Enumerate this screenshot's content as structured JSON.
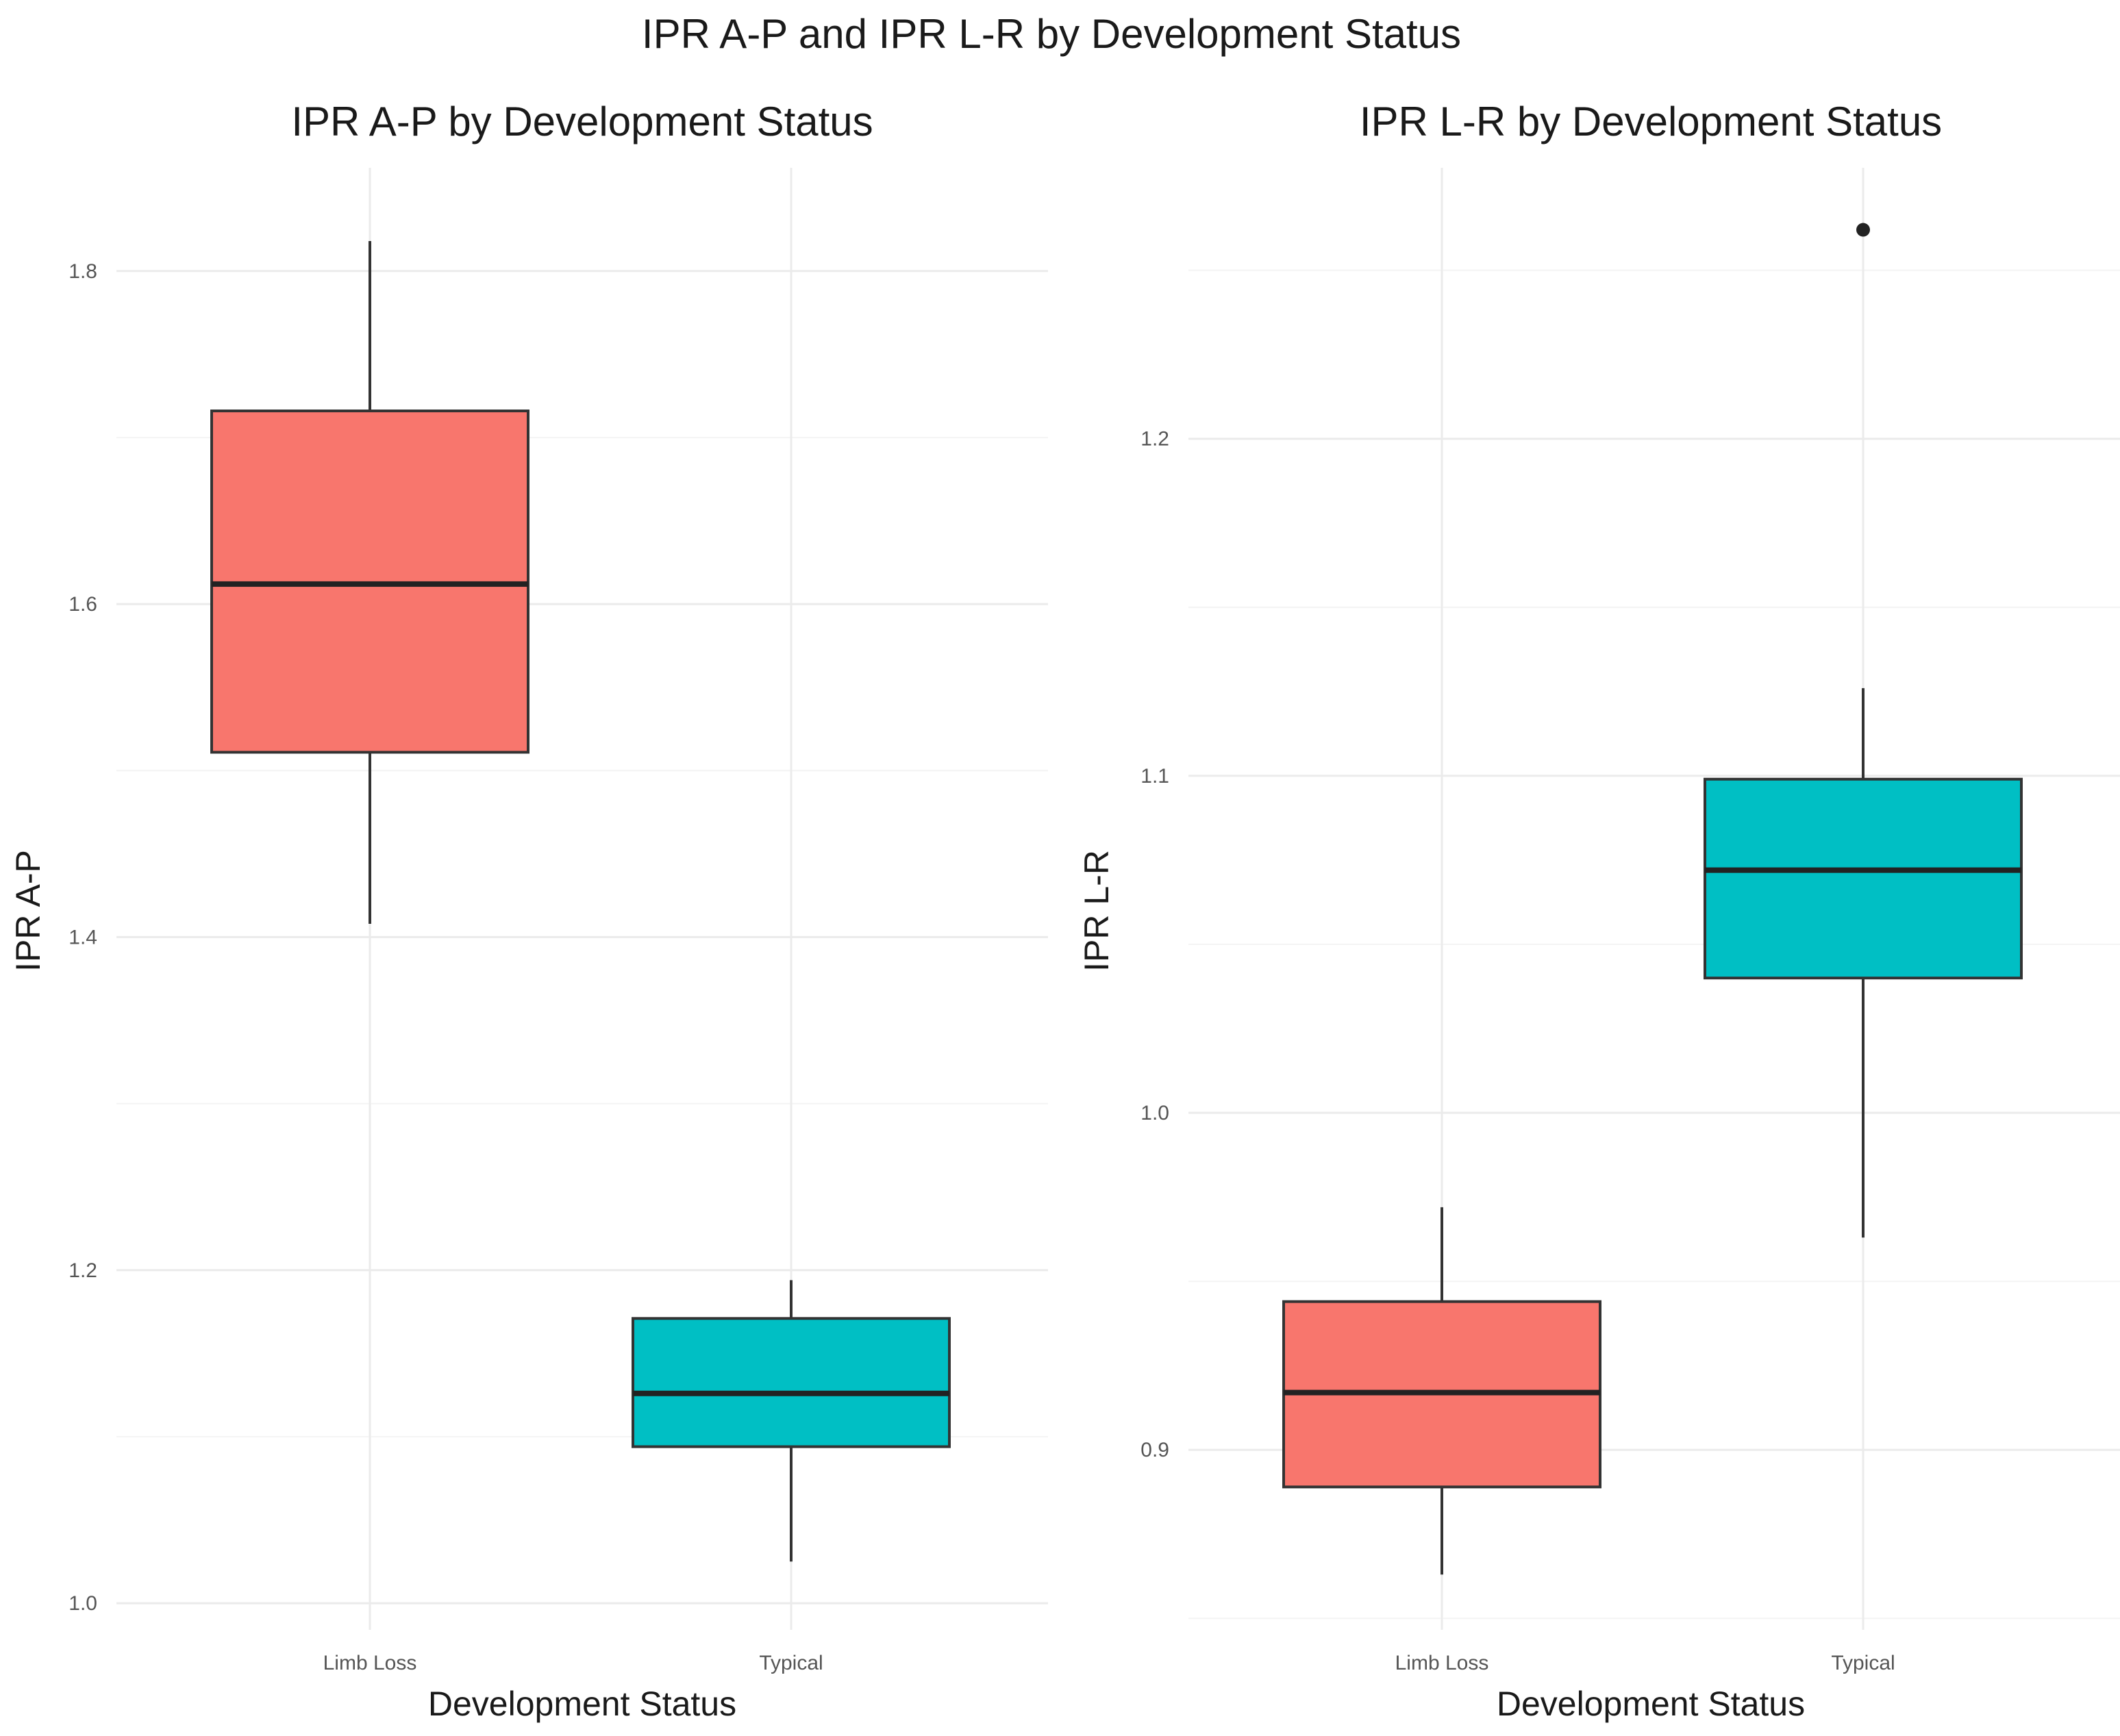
{
  "figure_title": "IPR A-P and IPR L-R by Development Status",
  "colors": {
    "Limb Loss": "#F8766D",
    "Typical": "#00BFC4"
  },
  "chart_data": [
    {
      "type": "boxplot",
      "title": "IPR A-P by Development Status",
      "xlabel": "Development Status",
      "ylabel": "IPR A-P",
      "categories": [
        "Limb Loss",
        "Typical"
      ],
      "ylim": [
        0.984,
        1.862
      ],
      "yticks": [
        1.0,
        1.2,
        1.4,
        1.6,
        1.8
      ],
      "ytick_labels": [
        "1.0",
        "1.2",
        "1.4",
        "1.6",
        "1.8"
      ],
      "boxes": [
        {
          "category": "Limb Loss",
          "whisker_low": 1.408,
          "q1": 1.511,
          "median": 1.612,
          "q3": 1.716,
          "whisker_high": 1.818,
          "outliers": []
        },
        {
          "category": "Typical",
          "whisker_low": 1.025,
          "q1": 1.094,
          "median": 1.126,
          "q3": 1.171,
          "whisker_high": 1.194,
          "outliers": []
        }
      ]
    },
    {
      "type": "boxplot",
      "title": "IPR L-R by Development Status",
      "xlabel": "Development Status",
      "ylabel": "IPR L-R",
      "categories": [
        "Limb Loss",
        "Typical"
      ],
      "ylim": [
        0.8466,
        1.2804
      ],
      "yticks": [
        0.9,
        1.0,
        1.1,
        1.2
      ],
      "ytick_labels": [
        "0.9",
        "1.0",
        "1.1",
        "1.2"
      ],
      "boxes": [
        {
          "category": "Limb Loss",
          "whisker_low": 0.863,
          "q1": 0.889,
          "median": 0.917,
          "q3": 0.944,
          "whisker_high": 0.972,
          "outliers": []
        },
        {
          "category": "Typical",
          "whisker_low": 0.963,
          "q1": 1.04,
          "median": 1.072,
          "q3": 1.099,
          "whisker_high": 1.126,
          "outliers": [
            1.262
          ]
        }
      ]
    }
  ]
}
